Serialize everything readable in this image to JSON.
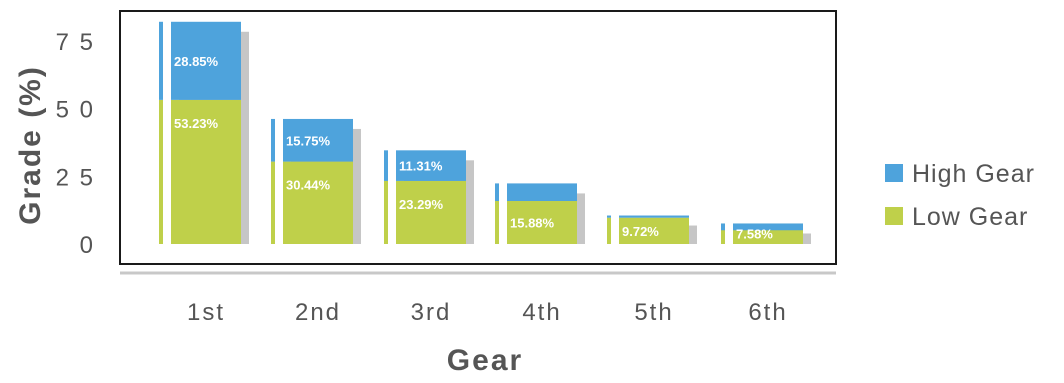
{
  "chart_data": {
    "type": "bar",
    "stacked": true,
    "xlabel": "Gear",
    "ylabel": "Grade (%)",
    "ylim": [
      0,
      82
    ],
    "yticks": [
      0,
      25,
      50,
      75
    ],
    "categories": [
      "1st",
      "2nd",
      "3rd",
      "4th",
      "5th",
      "6th"
    ],
    "series": [
      {
        "name": "Low Gear",
        "color": "#bfd04a",
        "values": [
          53.23,
          30.44,
          23.29,
          15.88,
          9.72,
          7.58
        ],
        "labels": [
          "53.23%",
          "30.44%",
          "23.29%",
          "15.88%",
          "9.72%",
          "7.58%"
        ]
      },
      {
        "name": "High Gear",
        "color": "#4ea3dc",
        "values": [
          28.85,
          15.75,
          11.31,
          6.5,
          0.8,
          -2.5
        ],
        "labels": [
          "28.85%",
          "15.75%",
          "11.31%",
          "",
          "",
          ""
        ]
      }
    ],
    "legend": "right",
    "grid": false
  }
}
